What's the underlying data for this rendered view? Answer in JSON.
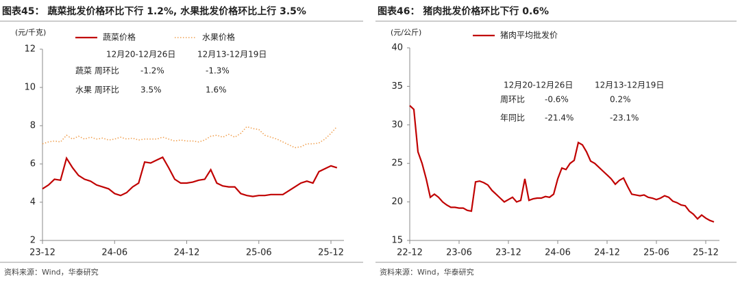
{
  "chart_data": [
    {
      "type": "line",
      "title": "图表45： 蔬菜批发价格环比下行 1.2%, 水果批发价格环比上行 3.5%",
      "y_label": "(元/千克)",
      "source": "资料来源：Wind，华泰研究",
      "categories": [
        "23-12",
        null,
        null,
        null,
        null,
        null,
        null,
        null,
        null,
        null,
        null,
        null,
        "24-06",
        null,
        null,
        null,
        null,
        null,
        null,
        null,
        null,
        null,
        null,
        null,
        "24-12",
        null,
        null,
        null,
        null,
        null,
        null,
        null,
        null,
        null,
        null,
        null,
        "25-06",
        null,
        null,
        null,
        null,
        null,
        null,
        null,
        null,
        null,
        null,
        null,
        "25-12",
        null
      ],
      "series": [
        {
          "name": "蔬菜价格",
          "color": "#c00000",
          "line_style": "solid",
          "values": [
            4.7,
            4.9,
            5.2,
            5.15,
            6.3,
            5.8,
            5.4,
            5.2,
            5.1,
            4.9,
            4.8,
            4.7,
            4.45,
            4.35,
            4.5,
            4.8,
            5.0,
            6.1,
            6.05,
            6.2,
            6.35,
            5.8,
            5.2,
            5.0,
            5.0,
            5.05,
            5.15,
            5.2,
            5.7,
            5.0,
            4.85,
            4.8,
            4.8,
            4.45,
            4.35,
            4.3,
            4.35,
            4.35,
            4.4,
            4.4,
            4.4,
            4.6,
            4.8,
            5.0,
            5.1,
            5.0,
            5.6,
            5.75,
            5.9,
            5.8
          ]
        },
        {
          "name": "水果价格",
          "color": "#f0a050",
          "line_style": "dotted",
          "values": [
            7.05,
            7.15,
            7.2,
            7.15,
            7.5,
            7.3,
            7.45,
            7.3,
            7.4,
            7.3,
            7.35,
            7.25,
            7.3,
            7.4,
            7.3,
            7.35,
            7.25,
            7.3,
            7.3,
            7.3,
            7.4,
            7.3,
            7.2,
            7.25,
            7.2,
            7.2,
            7.15,
            7.25,
            7.45,
            7.5,
            7.4,
            7.55,
            7.4,
            7.6,
            7.95,
            7.85,
            7.8,
            7.5,
            7.4,
            7.3,
            7.15,
            7.0,
            6.85,
            6.9,
            7.05,
            7.05,
            7.1,
            7.3,
            7.6,
            7.95
          ]
        }
      ],
      "ylim": [
        2,
        12
      ],
      "yticks": [
        2,
        4,
        6,
        8,
        10,
        12
      ],
      "annotation": {
        "headers": [
          "12月20-12月26日",
          "12月13-12月19日"
        ],
        "rows": [
          [
            "蔬菜  周环比",
            "-1.2%",
            "-1.3%"
          ],
          [
            "水果  周环比",
            "3.5%",
            "1.6%"
          ]
        ]
      }
    },
    {
      "type": "line",
      "title": "图表46： 猪肉批发价格环比下行 0.6%",
      "y_label": "(元/公斤)",
      "source": "资料来源：Wind，华泰研究",
      "categories": [
        "22-12",
        null,
        null,
        null,
        null,
        null,
        null,
        null,
        null,
        null,
        null,
        null,
        "23-06",
        null,
        null,
        null,
        null,
        null,
        null,
        null,
        null,
        null,
        null,
        null,
        "23-12",
        null,
        null,
        null,
        null,
        null,
        null,
        null,
        null,
        null,
        null,
        null,
        "24-06",
        null,
        null,
        null,
        null,
        null,
        null,
        null,
        null,
        null,
        null,
        null,
        "24-12",
        null,
        null,
        null,
        null,
        null,
        null,
        null,
        null,
        null,
        null,
        null,
        "25-06",
        null,
        null,
        null,
        null,
        null,
        null,
        null,
        null,
        null,
        null,
        null,
        "25-12",
        null,
        null
      ],
      "series": [
        {
          "name": "猪肉平均批发价",
          "color": "#c00000",
          "line_style": "solid",
          "values": [
            32.5,
            32,
            26.5,
            25,
            23,
            20.6,
            21,
            20.6,
            20,
            19.6,
            19.3,
            19.3,
            19.2,
            19.2,
            18.9,
            18.8,
            22.6,
            22.7,
            22.5,
            22.2,
            21.5,
            21,
            20.5,
            20,
            20.3,
            20.6,
            20,
            20.2,
            23,
            20.2,
            20.4,
            20.5,
            20.5,
            20.7,
            20.6,
            21,
            23,
            24.4,
            24.2,
            25,
            25.4,
            27.7,
            27.4,
            26.5,
            25.3,
            25,
            24.5,
            24,
            23.5,
            23,
            22.3,
            22.8,
            23.1,
            22,
            21,
            20.9,
            20.8,
            20.9,
            20.6,
            20.5,
            20.3,
            20.5,
            20.8,
            20.6,
            20.1,
            19.9,
            19.6,
            19.5,
            18.8,
            18.4,
            17.8,
            18.3,
            17.9,
            17.6,
            17.4
          ]
        }
      ],
      "ylim": [
        15,
        40
      ],
      "yticks": [
        15,
        20,
        25,
        30,
        35,
        40
      ],
      "annotation": {
        "headers": [
          "12月20-12月26日",
          "12月13-12月19日"
        ],
        "rows": [
          [
            "周环比",
            "-0.6%",
            "0.2%"
          ],
          [
            "年同比",
            "-21.4%",
            "-23.1%"
          ]
        ]
      }
    }
  ]
}
